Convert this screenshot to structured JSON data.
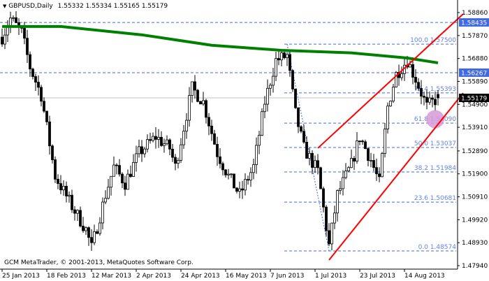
{
  "header": {
    "symbol": "GBPUSD,Daily",
    "ohlc": "1.55332 1.55334 1.55165 1.55179"
  },
  "footer": {
    "copyright": "GCM MetaTrader, © 2001-2013, MetaQuotes Software Corp."
  },
  "colors": {
    "ma": "#008000",
    "channel": "#ff0000",
    "fib": "#4169e1",
    "fib_text": "#6482e6",
    "highlight": "#d69ad8",
    "price_box": "#4169e1",
    "bid_box": "#000000"
  },
  "chart_data": {
    "type": "candlestick",
    "title": "GBPUSD,Daily",
    "ylim": [
      1.4794,
      1.5886
    ],
    "y_ticks": [
      "1.58860",
      "1.57870",
      "1.56880",
      "1.55890",
      "1.54900",
      "1.53910",
      "1.52890",
      "1.51900",
      "1.50910",
      "1.49920",
      "1.48930",
      "1.47940"
    ],
    "x_ticks": [
      {
        "date": "2013-01-25",
        "label": "25 Jan 2013"
      },
      {
        "date": "2013-02-18",
        "label": "18 Feb 2013"
      },
      {
        "date": "2013-03-12",
        "label": "12 Mar 2013"
      },
      {
        "date": "2013-04-03",
        "label": "2 Apr 2013"
      },
      {
        "date": "2013-04-25",
        "label": "24 Apr 2013"
      },
      {
        "date": "2013-05-17",
        "label": "16 May 2013"
      },
      {
        "date": "2013-06-10",
        "label": "7 Jun 2013"
      },
      {
        "date": "2013-07-02",
        "label": "1 Jul 2013"
      },
      {
        "date": "2013-07-24",
        "label": "23 Jul 2013"
      },
      {
        "date": "2013-08-15",
        "label": "14 Aug 2013"
      }
    ],
    "approx_close_path": [
      [
        "2013-01-25",
        1.578
      ],
      [
        "2013-01-30",
        1.586
      ],
      [
        "2013-02-05",
        1.58
      ],
      [
        "2013-02-08",
        1.565
      ],
      [
        "2013-02-14",
        1.553
      ],
      [
        "2013-02-21",
        1.518
      ],
      [
        "2013-03-01",
        1.505
      ],
      [
        "2013-03-08",
        1.495
      ],
      [
        "2013-03-12",
        1.487
      ],
      [
        "2013-03-19",
        1.51
      ],
      [
        "2013-03-22",
        1.522
      ],
      [
        "2013-03-28",
        1.515
      ],
      [
        "2013-04-04",
        1.528
      ],
      [
        "2013-04-12",
        1.535
      ],
      [
        "2013-04-19",
        1.53
      ],
      [
        "2013-04-23",
        1.522
      ],
      [
        "2013-05-01",
        1.556
      ],
      [
        "2013-05-07",
        1.55
      ],
      [
        "2013-05-14",
        1.528
      ],
      [
        "2013-05-20",
        1.518
      ],
      [
        "2013-05-24",
        1.51
      ],
      [
        "2013-05-31",
        1.522
      ],
      [
        "2013-06-06",
        1.55
      ],
      [
        "2013-06-12",
        1.568
      ],
      [
        "2013-06-18",
        1.57
      ],
      [
        "2013-06-21",
        1.545
      ],
      [
        "2013-06-26",
        1.53
      ],
      [
        "2013-07-03",
        1.52
      ],
      [
        "2013-07-09",
        1.488
      ],
      [
        "2013-07-12",
        1.51
      ],
      [
        "2013-07-19",
        1.523
      ],
      [
        "2013-07-24",
        1.535
      ],
      [
        "2013-07-30",
        1.525
      ],
      [
        "2013-08-02",
        1.515
      ],
      [
        "2013-08-07",
        1.548
      ],
      [
        "2013-08-12",
        1.562
      ],
      [
        "2013-08-16",
        1.568
      ],
      [
        "2013-08-21",
        1.56
      ],
      [
        "2013-08-27",
        1.548
      ],
      [
        "2013-09-02",
        1.55179
      ]
    ],
    "moving_average": [
      [
        "2013-01-25",
        1.5826
      ],
      [
        "2013-02-25",
        1.5826
      ],
      [
        "2013-04-05",
        1.579
      ],
      [
        "2013-05-10",
        1.5745
      ],
      [
        "2013-06-14",
        1.5723
      ],
      [
        "2013-07-19",
        1.5712
      ],
      [
        "2013-08-16",
        1.569
      ],
      [
        "2013-09-02",
        1.5669
      ]
    ],
    "horizontal_levels": [
      {
        "price": 1.58435,
        "label": "1.58435",
        "style": "price-box"
      },
      {
        "price": 1.56267,
        "label": "1.56267",
        "style": "price-box"
      }
    ],
    "bid": {
      "price": 1.55179,
      "label": "1.55179"
    },
    "fibonacci": {
      "from": [
        "2013-06-18",
        1.575
      ],
      "to": [
        "2013-07-09",
        1.48574
      ],
      "levels": [
        {
          "ratio": "100.0",
          "price": 1.575,
          "label": "100.0 1.57500"
        },
        {
          "ratio": "76.4",
          "price": 1.55393,
          "label": "76.4 1.55393"
        },
        {
          "ratio": "61.8",
          "price": 1.5409,
          "label": "61.8 1.54090"
        },
        {
          "ratio": "50.0",
          "price": 1.53037,
          "label": "50.0 1.53037"
        },
        {
          "ratio": "38.2",
          "price": 1.51984,
          "label": "38.2 1.51984"
        },
        {
          "ratio": "23.6",
          "price": 1.50681,
          "label": "23.6 1.50681"
        },
        {
          "ratio": "0.0",
          "price": 1.48574,
          "label": "0.0 1.48574"
        }
      ]
    },
    "channel": [
      {
        "from": [
          "2013-07-03",
          1.5301
        ],
        "to": [
          "2013-09-13",
          1.588
        ]
      },
      {
        "from": [
          "2013-07-09",
          1.4818
        ],
        "to": [
          "2013-09-13",
          1.5539
        ]
      }
    ],
    "highlight": {
      "date": "2013-08-30",
      "price": 1.5426
    }
  }
}
